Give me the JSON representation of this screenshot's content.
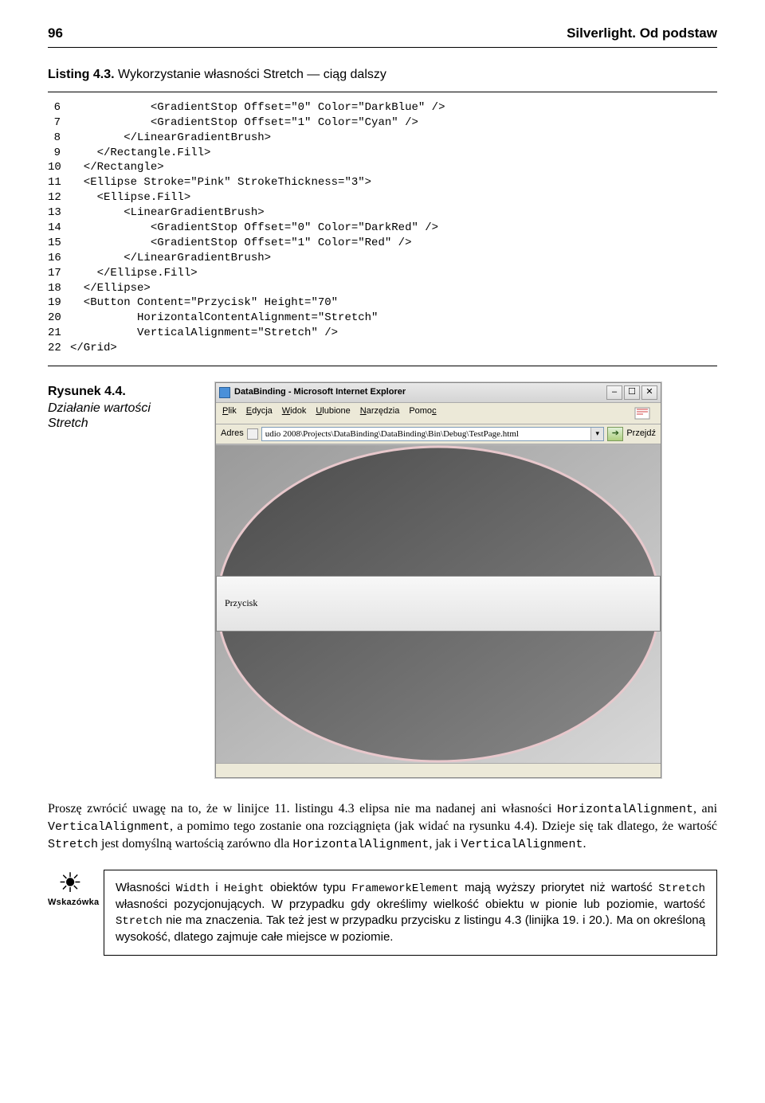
{
  "header": {
    "page_number": "96",
    "book_title": "Silverlight. Od podstaw"
  },
  "listing": {
    "label_bold": "Listing 4.3.",
    "label_rest": " Wykorzystanie własności Stretch — ciąg dalszy",
    "code_lines": [
      {
        "n": "6",
        "c": "            <GradientStop Offset=\"0\" Color=\"DarkBlue\" />"
      },
      {
        "n": "7",
        "c": "            <GradientStop Offset=\"1\" Color=\"Cyan\" />"
      },
      {
        "n": "8",
        "c": "        </LinearGradientBrush>"
      },
      {
        "n": "9",
        "c": "    </Rectangle.Fill>"
      },
      {
        "n": "10",
        "c": "  </Rectangle>"
      },
      {
        "n": "11",
        "c": "  <Ellipse Stroke=\"Pink\" StrokeThickness=\"3\">"
      },
      {
        "n": "12",
        "c": "    <Ellipse.Fill>"
      },
      {
        "n": "13",
        "c": "        <LinearGradientBrush>"
      },
      {
        "n": "14",
        "c": "            <GradientStop Offset=\"0\" Color=\"DarkRed\" />"
      },
      {
        "n": "15",
        "c": "            <GradientStop Offset=\"1\" Color=\"Red\" />"
      },
      {
        "n": "16",
        "c": "        </LinearGradientBrush>"
      },
      {
        "n": "17",
        "c": "    </Ellipse.Fill>"
      },
      {
        "n": "18",
        "c": "  </Ellipse>"
      },
      {
        "n": "19",
        "c": "  <Button Content=\"Przycisk\" Height=\"70\""
      },
      {
        "n": "20",
        "c": "          HorizontalContentAlignment=\"Stretch\""
      },
      {
        "n": "21",
        "c": "          VerticalAlignment=\"Stretch\" />"
      },
      {
        "n": "22",
        "c": "</Grid>"
      }
    ]
  },
  "figure": {
    "label": "Rysunek 4.4.",
    "desc": "Działanie wartości Stretch"
  },
  "ie_window": {
    "title": "DataBinding - Microsoft Internet Explorer",
    "menu": {
      "plik": "Plik",
      "edycja": "Edycja",
      "widok": "Widok",
      "ulubione": "Ulubione",
      "narzedzia": "Narzędzia",
      "pomoc": "Pomoc"
    },
    "addr_label": "Adres",
    "addr_value": "udio 2008\\Projects\\DataBinding\\DataBinding\\Bin\\Debug\\TestPage.html",
    "go_label": "Przejdź",
    "button_label": "Przycisk",
    "colors": {
      "ellipse_stroke": "#e8c8cc",
      "ellipse_fill_dark": "#5a5a5a",
      "ellipse_fill_light": "#8a8a8a",
      "rect_fill_dark": "#9a9a9a",
      "rect_fill_light": "#d8d8d8",
      "button_bg": "#ececec"
    },
    "dims": {
      "content_w": 558,
      "content_h": 400,
      "button_h": 70
    }
  },
  "paragraph": {
    "t1": "Proszę zwrócić uwagę na to, że w linijce 11. listingu 4.3 elipsa nie ma nadanej ani własności ",
    "m1": "HorizontalAlignment",
    "t2": ", ani ",
    "m2": "VerticalAlignment",
    "t3": ", a pomimo tego zostanie ona rozciągnięta (jak widać na rysunku 4.4). Dzieje się tak dlatego, że wartość ",
    "m3": "Stretch",
    "t4": " jest domyślną wartością zarówno dla ",
    "m4": "HorizontalAlignment",
    "t5": ", jak i ",
    "m5": "VerticalAlignment",
    "t6": "."
  },
  "tip": {
    "icon_label": "Wskazówka",
    "b1": "Własności ",
    "bm1": "Width",
    "b2": " i ",
    "bm2": "Height",
    "b3": " obiektów typu ",
    "bm3": "FrameworkElement",
    "b4": " mają wyższy priorytet niż wartość ",
    "bm4": "Stretch ",
    "b5": " własności pozycjonujących. W przypadku gdy określimy wielkość obiektu w pionie lub poziomie, wartość ",
    "bm5": "Stretch",
    "b6": " nie ma znaczenia. Tak też jest w przypadku przycisku z listingu 4.3 (linijka 19. i 20.). Ma on określoną wysokość, dlatego zajmuje całe miejsce w poziomie."
  }
}
